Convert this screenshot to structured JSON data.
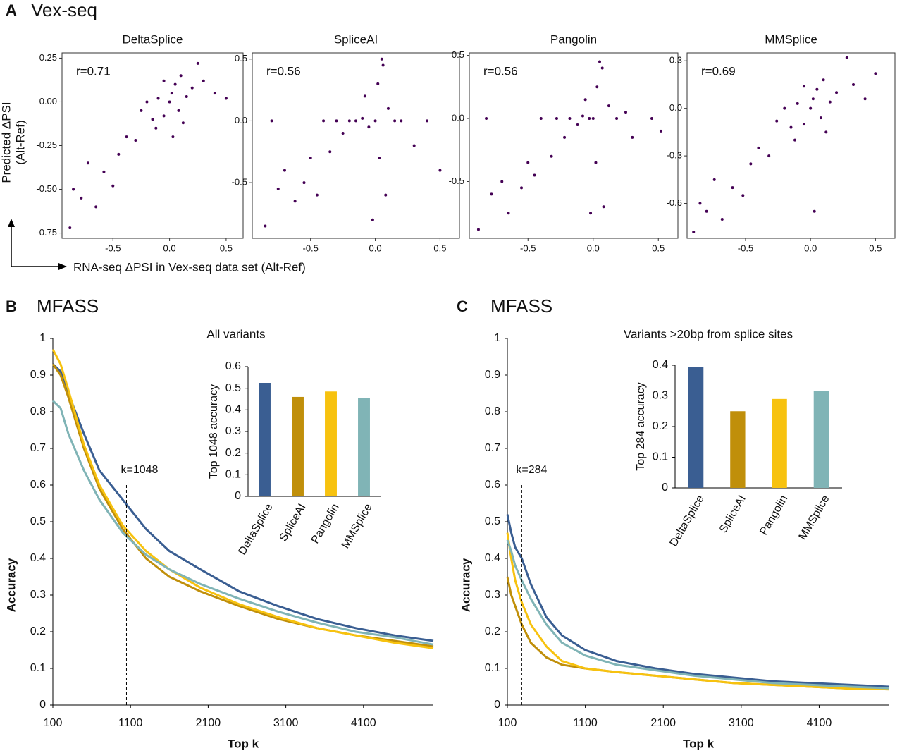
{
  "figure": {
    "panel_a": {
      "letter": "A",
      "title": "Vex-seq",
      "ylabel": [
        "Predicted ΔPSI",
        "(Alt-Ref)"
      ],
      "xlabel": "RNA-seq ΔPSI in Vex-seq data set (Alt-Ref)"
    },
    "panel_b": {
      "letter": "B",
      "title": "MFASS"
    },
    "panel_c": {
      "letter": "C",
      "title": "MFASS"
    }
  },
  "chart_data": [
    {
      "type": "scatter",
      "title": "DeltaSplice",
      "annotation": "r=0.71",
      "color": "#440154",
      "xlim": [
        -0.95,
        0.65
      ],
      "ylim": [
        -0.78,
        0.28
      ],
      "xticks": [
        -0.5,
        {
          "value": 0,
          "label": "0.0"
        },
        0.5
      ],
      "yticks": [
        0.25,
        {
          "value": 0,
          "label": "0.00"
        },
        -0.25,
        {
          "value": -0.5,
          "label": "-0.50"
        },
        -0.75
      ],
      "x": [
        -0.88,
        -0.85,
        -0.78,
        -0.72,
        -0.65,
        -0.58,
        -0.5,
        -0.45,
        -0.38,
        -0.3,
        -0.25,
        -0.2,
        -0.15,
        -0.1,
        -0.05,
        0,
        0.02,
        0.05,
        0.08,
        0.1,
        0.15,
        0.2,
        0.25,
        0.3,
        0.4,
        0.5,
        -0.12,
        0.12,
        -0.05,
        0.03
      ],
      "y": [
        -0.72,
        -0.5,
        -0.55,
        -0.35,
        -0.6,
        -0.4,
        -0.48,
        -0.3,
        -0.2,
        -0.22,
        -0.05,
        0.0,
        -0.1,
        0.02,
        -0.08,
        0,
        0.05,
        0.1,
        -0.05,
        0.15,
        0.03,
        0.08,
        0.22,
        0.12,
        0.05,
        0.02,
        -0.15,
        -0.12,
        0.12,
        -0.2
      ]
    },
    {
      "type": "scatter",
      "title": "SpliceAI",
      "annotation": "r=0.56",
      "color": "#440154",
      "xlim": [
        -0.95,
        0.65
      ],
      "ylim": [
        -0.95,
        0.55
      ],
      "xticks": [
        -0.5,
        {
          "value": 0,
          "label": "0.0"
        },
        0.5
      ],
      "yticks": [
        0.5,
        {
          "value": 0,
          "label": "0.0"
        },
        -0.5
      ],
      "x": [
        -0.85,
        -0.8,
        -0.75,
        -0.7,
        -0.62,
        -0.55,
        -0.5,
        -0.45,
        -0.4,
        -0.35,
        -0.3,
        -0.25,
        -0.2,
        -0.15,
        -0.1,
        -0.05,
        0,
        0.02,
        0.05,
        0.08,
        0.1,
        0.15,
        0.2,
        0.3,
        0.4,
        0.5,
        -0.02,
        0.03,
        0.06,
        -0.08
      ],
      "y": [
        -0.85,
        0.0,
        -0.55,
        -0.4,
        -0.65,
        -0.5,
        -0.3,
        -0.6,
        0.0,
        -0.25,
        0.0,
        -0.1,
        0.0,
        0.0,
        0.02,
        -0.05,
        0,
        0.3,
        0.5,
        -0.6,
        0.1,
        0.0,
        0.0,
        -0.2,
        0.0,
        -0.4,
        -0.8,
        -0.3,
        0.45,
        0.2
      ]
    },
    {
      "type": "scatter",
      "title": "Pangolin",
      "annotation": "r=0.56",
      "color": "#440154",
      "xlim": [
        -0.95,
        0.65
      ],
      "ylim": [
        -0.95,
        0.52
      ],
      "xticks": [
        -0.5,
        {
          "value": 0,
          "label": "0.0"
        },
        0.5
      ],
      "yticks": [
        0.5,
        {
          "value": 0,
          "label": "0.0"
        },
        -0.5
      ],
      "x": [
        -0.88,
        -0.82,
        -0.78,
        -0.7,
        -0.65,
        -0.55,
        -0.5,
        -0.45,
        -0.4,
        -0.32,
        -0.28,
        -0.22,
        -0.18,
        -0.12,
        -0.08,
        -0.03,
        0,
        0.03,
        0.05,
        0.08,
        0.12,
        0.18,
        0.25,
        0.3,
        0.45,
        0.52,
        -0.02,
        0.02,
        0.07,
        -0.06
      ],
      "y": [
        -0.88,
        0.0,
        -0.6,
        -0.5,
        -0.75,
        -0.55,
        -0.35,
        -0.45,
        0.0,
        -0.3,
        0.0,
        -0.15,
        0.0,
        -0.05,
        0.02,
        0.0,
        0,
        0.25,
        0.45,
        -0.7,
        0.1,
        0.0,
        0.05,
        -0.15,
        0.0,
        -0.1,
        -0.75,
        -0.35,
        0.4,
        0.15
      ]
    },
    {
      "type": "scatter",
      "title": "MMSplice",
      "annotation": "r=0.69",
      "color": "#440154",
      "xlim": [
        -0.95,
        0.65
      ],
      "ylim": [
        -0.82,
        0.35
      ],
      "xticks": [
        -0.5,
        {
          "value": 0,
          "label": "0.0"
        },
        0.5
      ],
      "yticks": [
        0.3,
        {
          "value": 0,
          "label": "0.0"
        },
        -0.3,
        -0.6
      ],
      "x": [
        -0.9,
        -0.85,
        -0.8,
        -0.74,
        -0.68,
        -0.6,
        -0.52,
        -0.46,
        -0.4,
        -0.32,
        -0.26,
        -0.2,
        -0.15,
        -0.1,
        -0.05,
        0,
        0.02,
        0.05,
        0.08,
        0.1,
        0.15,
        0.2,
        0.28,
        0.33,
        0.42,
        0.5,
        -0.12,
        0.12,
        -0.05,
        0.03
      ],
      "y": [
        -0.78,
        -0.6,
        -0.65,
        -0.45,
        -0.7,
        -0.5,
        -0.55,
        -0.35,
        -0.25,
        -0.3,
        -0.08,
        0.0,
        -0.12,
        0.03,
        -0.1,
        0,
        0.06,
        0.12,
        -0.06,
        0.18,
        0.04,
        0.1,
        0.32,
        0.15,
        0.06,
        0.22,
        -0.2,
        -0.15,
        0.14,
        -0.65
      ]
    },
    {
      "type": "line",
      "xlabel": "Top k",
      "ylabel": "Accuracy",
      "xlim": [
        100,
        5000
      ],
      "ylim": [
        0,
        1
      ],
      "xticks": [
        100,
        1100,
        2100,
        3100,
        4100
      ],
      "yticks": [
        0,
        0.1,
        0.2,
        0.3,
        0.4,
        0.5,
        0.6,
        0.7,
        0.8,
        0.9,
        1
      ],
      "vline": {
        "value": 1048,
        "label": "k=1048"
      },
      "x": [
        100,
        200,
        300,
        500,
        700,
        1000,
        1300,
        1600,
        2000,
        2500,
        3000,
        3500,
        4000,
        4500,
        5000
      ],
      "series": [
        {
          "name": "DeltaSplice",
          "color": "#3a5e92",
          "values": [
            0.93,
            0.91,
            0.85,
            0.74,
            0.64,
            0.56,
            0.48,
            0.42,
            0.37,
            0.31,
            0.27,
            0.235,
            0.21,
            0.19,
            0.175
          ]
        },
        {
          "name": "SpliceAI",
          "color": "#c08f0a",
          "values": [
            0.93,
            0.9,
            0.84,
            0.7,
            0.59,
            0.48,
            0.4,
            0.35,
            0.31,
            0.27,
            0.235,
            0.21,
            0.19,
            0.175,
            0.16
          ]
        },
        {
          "name": "Pangolin",
          "color": "#f7c20f",
          "values": [
            0.97,
            0.93,
            0.86,
            0.71,
            0.6,
            0.49,
            0.42,
            0.37,
            0.32,
            0.275,
            0.24,
            0.21,
            0.19,
            0.17,
            0.155
          ]
        },
        {
          "name": "MMSplice",
          "color": "#80b4b6",
          "values": [
            0.83,
            0.81,
            0.74,
            0.64,
            0.56,
            0.47,
            0.41,
            0.37,
            0.33,
            0.29,
            0.255,
            0.225,
            0.2,
            0.185,
            0.165
          ]
        }
      ]
    },
    {
      "type": "bar",
      "title": "All variants",
      "ylabel": "Top 1048 accuracy",
      "categories": [
        "DeltaSplice",
        "SpliceAI",
        "Pangolin",
        "MMSplice"
      ],
      "values": [
        0.525,
        0.46,
        0.485,
        0.455
      ],
      "colors": [
        "#3a5e92",
        "#c08f0a",
        "#f7c20f",
        "#80b4b6"
      ],
      "ylim": [
        0,
        0.6
      ],
      "yticks": [
        0,
        0.1,
        0.2,
        0.3,
        0.4,
        0.5,
        0.6
      ]
    },
    {
      "type": "line",
      "xlabel": "Top k",
      "ylabel": "Accuracy",
      "xlim": [
        100,
        5000
      ],
      "ylim": [
        0,
        1
      ],
      "xticks": [
        100,
        1100,
        2100,
        3100,
        4100
      ],
      "yticks": [
        0,
        0.1,
        0.2,
        0.3,
        0.4,
        0.5,
        0.6,
        0.7,
        0.8,
        0.9,
        1
      ],
      "vline": {
        "value": 284,
        "label": "k=284"
      },
      "x": [
        100,
        150,
        200,
        284,
        400,
        600,
        800,
        1100,
        1500,
        2000,
        2500,
        3000,
        3500,
        4000,
        4500,
        5000
      ],
      "series": [
        {
          "name": "DeltaSplice",
          "color": "#3a5e92",
          "values": [
            0.52,
            0.47,
            0.43,
            0.4,
            0.33,
            0.24,
            0.19,
            0.15,
            0.12,
            0.1,
            0.085,
            0.075,
            0.065,
            0.06,
            0.055,
            0.05
          ]
        },
        {
          "name": "SpliceAI",
          "color": "#c08f0a",
          "values": [
            0.35,
            0.3,
            0.27,
            0.22,
            0.17,
            0.13,
            0.11,
            0.1,
            0.09,
            0.08,
            0.07,
            0.06,
            0.055,
            0.05,
            0.045,
            0.043
          ]
        },
        {
          "name": "Pangolin",
          "color": "#f7c20f",
          "values": [
            0.47,
            0.4,
            0.34,
            0.28,
            0.22,
            0.16,
            0.12,
            0.1,
            0.09,
            0.08,
            0.07,
            0.06,
            0.055,
            0.05,
            0.045,
            0.043
          ]
        },
        {
          "name": "MMSplice",
          "color": "#80b4b6",
          "values": [
            0.45,
            0.42,
            0.38,
            0.34,
            0.29,
            0.22,
            0.17,
            0.135,
            0.11,
            0.095,
            0.08,
            0.07,
            0.06,
            0.055,
            0.05,
            0.046
          ]
        }
      ]
    },
    {
      "type": "bar",
      "title": "Variants >20bp from splice sites",
      "ylabel": "Top 284 accuracy",
      "categories": [
        "DeltaSplice",
        "SpliceAI",
        "Pangolin",
        "MMSplice"
      ],
      "values": [
        0.395,
        0.25,
        0.29,
        0.315
      ],
      "colors": [
        "#3a5e92",
        "#c08f0a",
        "#f7c20f",
        "#80b4b6"
      ],
      "ylim": [
        0,
        0.4
      ],
      "yticks": [
        0,
        0.1,
        0.2,
        0.3,
        0.4
      ]
    }
  ]
}
